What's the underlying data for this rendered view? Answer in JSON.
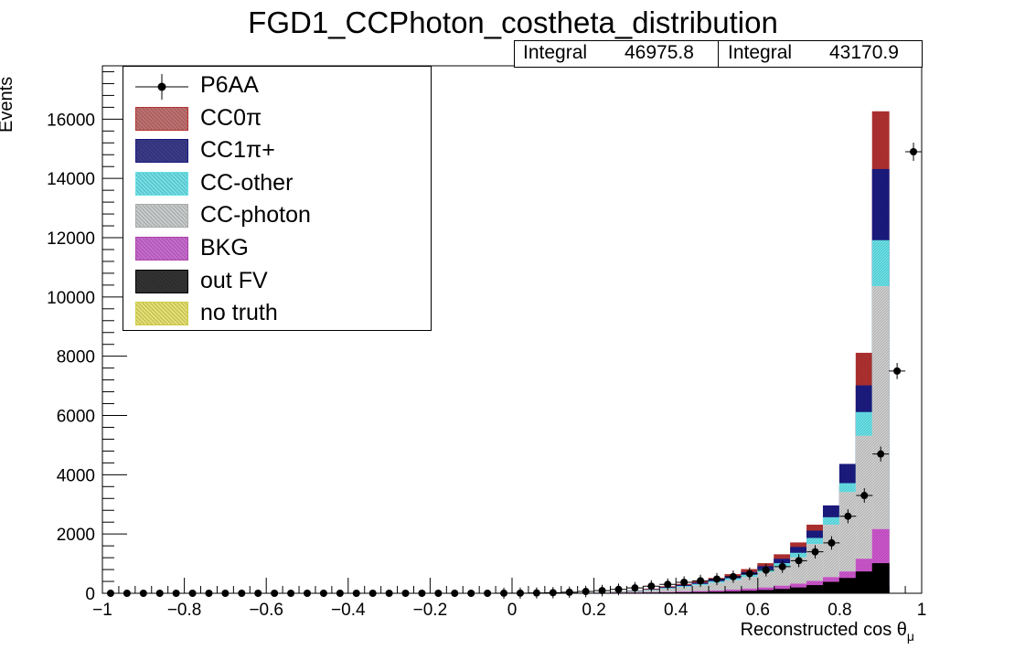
{
  "chart_data": {
    "type": "bar",
    "title": "FGD1_CCPhoton_costheta_distribution",
    "xlabel": "Reconstructed cos θ",
    "xlabel_subscript": "μ",
    "ylabel": "Events",
    "xlim": [
      -1,
      1
    ],
    "ylim": [
      0,
      17800
    ],
    "x_ticks": [
      "−1",
      "−0.8",
      "−0.6",
      "−0.4",
      "−0.2",
      "0",
      "0.2",
      "0.4",
      "0.6",
      "0.8",
      "1"
    ],
    "y_ticks": [
      "0",
      "2000",
      "4000",
      "6000",
      "8000",
      "10000",
      "12000",
      "14000",
      "16000"
    ],
    "bin_edges_from": 0.2,
    "bin_width": 0.04,
    "stack_order": [
      "out FV",
      "BKG",
      "CC-photon",
      "CC-other",
      "CC1π+",
      "CC0π"
    ],
    "stacked_series": [
      {
        "name": "out FV",
        "color": "#000000",
        "values": [
          0,
          2,
          4,
          8,
          12,
          18,
          25,
          35,
          50,
          70,
          95,
          130,
          180,
          260,
          370,
          500,
          720,
          1000
        ]
      },
      {
        "name": "BKG",
        "color": "#cc55cc",
        "values": [
          3,
          6,
          12,
          20,
          30,
          45,
          60,
          80,
          110,
          140,
          180,
          240,
          310,
          400,
          530,
          720,
          1150,
          2150
        ]
      },
      {
        "name": "CC-photon",
        "color": "#cccccc",
        "values": [
          10,
          25,
          50,
          90,
          140,
          200,
          260,
          340,
          430,
          540,
          700,
          900,
          1200,
          1650,
          2300,
          3400,
          5300,
          10350
        ]
      },
      {
        "name": "CC-other",
        "color": "#66e0e6",
        "values": [
          12,
          30,
          60,
          105,
          165,
          230,
          300,
          390,
          490,
          610,
          790,
          1000,
          1350,
          1850,
          2550,
          3700,
          6100,
          11900
        ]
      },
      {
        "name": "CC1π+",
        "color": "#1b1b80",
        "values": [
          14,
          34,
          70,
          120,
          190,
          265,
          345,
          445,
          560,
          700,
          900,
          1150,
          1550,
          2100,
          2950,
          4350,
          7000,
          14300
        ]
      },
      {
        "name": "CC0π",
        "color": "#b03030",
        "values": [
          16,
          40,
          80,
          140,
          220,
          300,
          390,
          500,
          630,
          800,
          1000,
          1300,
          1700,
          2300,
          2800,
          3600,
          8100,
          16250
        ]
      }
    ],
    "data_series": {
      "name": "P6AA",
      "x": [
        -0.98,
        -0.94,
        -0.9,
        -0.86,
        -0.82,
        -0.78,
        -0.74,
        -0.7,
        -0.66,
        -0.62,
        -0.58,
        -0.54,
        -0.5,
        -0.46,
        -0.42,
        -0.38,
        -0.34,
        -0.3,
        -0.26,
        -0.22,
        -0.18,
        -0.14,
        -0.1,
        -0.06,
        -0.02,
        0.02,
        0.06,
        0.1,
        0.14,
        0.18,
        0.22,
        0.26,
        0.3,
        0.34,
        0.38,
        0.42,
        0.46,
        0.5,
        0.54,
        0.58,
        0.62,
        0.66,
        0.7,
        0.74,
        0.78,
        0.82,
        0.86,
        0.9,
        0.94,
        0.98
      ],
      "y": [
        0,
        0,
        0,
        0,
        0,
        0,
        0,
        0,
        0,
        0,
        0,
        0,
        0,
        0,
        0,
        0,
        0,
        0,
        0,
        0,
        0,
        0,
        0,
        0,
        2,
        5,
        10,
        20,
        35,
        60,
        90,
        130,
        180,
        240,
        300,
        370,
        420,
        480,
        560,
        660,
        780,
        900,
        1100,
        1400,
        1700,
        2600,
        3300,
        4700,
        7500,
        14900
      ]
    },
    "stats": [
      {
        "label": "Integral",
        "value": "46975.8"
      },
      {
        "label": "Integral",
        "value": "43170.9"
      }
    ],
    "legend": [
      {
        "name": "P6AA",
        "kind": "marker"
      },
      {
        "name": "CC0π",
        "color": "#c07070",
        "border": "#b03030"
      },
      {
        "name": "CC1π+",
        "color": "#3a3a8a",
        "border": "#1b1b80"
      },
      {
        "name": "CC-other",
        "color": "#70e0e8",
        "border": "#66e0e6"
      },
      {
        "name": "CC-photon",
        "color": "#c8cccc",
        "border": "#aaaaaa"
      },
      {
        "name": "BKG",
        "color": "#c86ad0",
        "border": "#aa44aa"
      },
      {
        "name": "out FV",
        "color": "#333333",
        "border": "#000000"
      },
      {
        "name": "no truth",
        "color": "#e6e070",
        "border": "#cccc44"
      }
    ],
    "legend_position": "top-left",
    "grid": false
  }
}
